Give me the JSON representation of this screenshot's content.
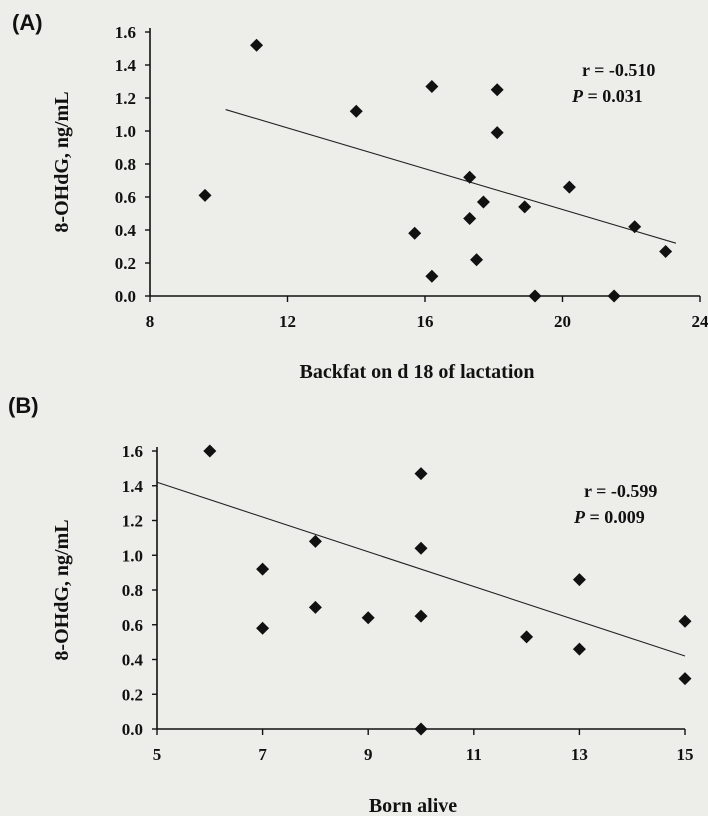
{
  "chart_data": [
    {
      "type": "scatter",
      "panel_label": "(A)",
      "xlabel": "Backfat on d 18 of lactation",
      "ylabel": "8-OHdG, ng/mL",
      "xlim": [
        8,
        24
      ],
      "ylim": [
        0,
        1.6
      ],
      "xticks": [
        "8",
        "12",
        "16",
        "20",
        "24"
      ],
      "yticks": [
        "0.0",
        "0.2",
        "0.4",
        "0.6",
        "0.8",
        "1.0",
        "1.2",
        "1.4",
        "1.6"
      ],
      "grid": false,
      "annotation": {
        "r": "r = -0.510",
        "p_label": "P",
        "p_value": "= 0.031"
      },
      "trendline": {
        "x": [
          10.2,
          23.3
        ],
        "y": [
          1.13,
          0.32
        ]
      },
      "points": [
        {
          "x": 9.6,
          "y": 0.61
        },
        {
          "x": 11.1,
          "y": 1.52
        },
        {
          "x": 14.0,
          "y": 1.12
        },
        {
          "x": 15.7,
          "y": 0.38
        },
        {
          "x": 16.2,
          "y": 1.27
        },
        {
          "x": 16.2,
          "y": 0.12
        },
        {
          "x": 17.3,
          "y": 0.72
        },
        {
          "x": 17.3,
          "y": 0.47
        },
        {
          "x": 17.7,
          "y": 0.57
        },
        {
          "x": 17.5,
          "y": 0.22
        },
        {
          "x": 18.1,
          "y": 1.25
        },
        {
          "x": 18.1,
          "y": 0.99
        },
        {
          "x": 18.9,
          "y": 0.54
        },
        {
          "x": 19.2,
          "y": 0.0
        },
        {
          "x": 20.2,
          "y": 0.66
        },
        {
          "x": 21.5,
          "y": 0.0
        },
        {
          "x": 22.1,
          "y": 0.42
        },
        {
          "x": 23.0,
          "y": 0.27
        }
      ]
    },
    {
      "type": "scatter",
      "panel_label": "(B)",
      "xlabel": "Born alive",
      "ylabel": "8-OHdG, ng/mL",
      "xlim": [
        5,
        15
      ],
      "ylim": [
        0,
        1.6
      ],
      "xticks": [
        "5",
        "7",
        "9",
        "11",
        "13",
        "15"
      ],
      "yticks": [
        "0.0",
        "0.2",
        "0.4",
        "0.6",
        "0.8",
        "1.0",
        "1.2",
        "1.4",
        "1.6"
      ],
      "grid": false,
      "annotation": {
        "r": "r = -0.599",
        "p_label": "P",
        "p_value": "= 0.009"
      },
      "trendline": {
        "x": [
          5.0,
          15.0
        ],
        "y": [
          1.42,
          0.42
        ]
      },
      "points": [
        {
          "x": 6.0,
          "y": 1.6
        },
        {
          "x": 7.0,
          "y": 0.92
        },
        {
          "x": 7.0,
          "y": 0.58
        },
        {
          "x": 8.0,
          "y": 1.08
        },
        {
          "x": 8.0,
          "y": 0.7
        },
        {
          "x": 9.0,
          "y": 0.64
        },
        {
          "x": 10.0,
          "y": 1.47
        },
        {
          "x": 10.0,
          "y": 1.04
        },
        {
          "x": 10.0,
          "y": 0.65
        },
        {
          "x": 10.0,
          "y": 0.0
        },
        {
          "x": 12.0,
          "y": 0.53
        },
        {
          "x": 13.0,
          "y": 0.86
        },
        {
          "x": 13.0,
          "y": 0.46
        },
        {
          "x": 15.0,
          "y": 0.62
        },
        {
          "x": 15.0,
          "y": 0.29
        }
      ]
    }
  ]
}
